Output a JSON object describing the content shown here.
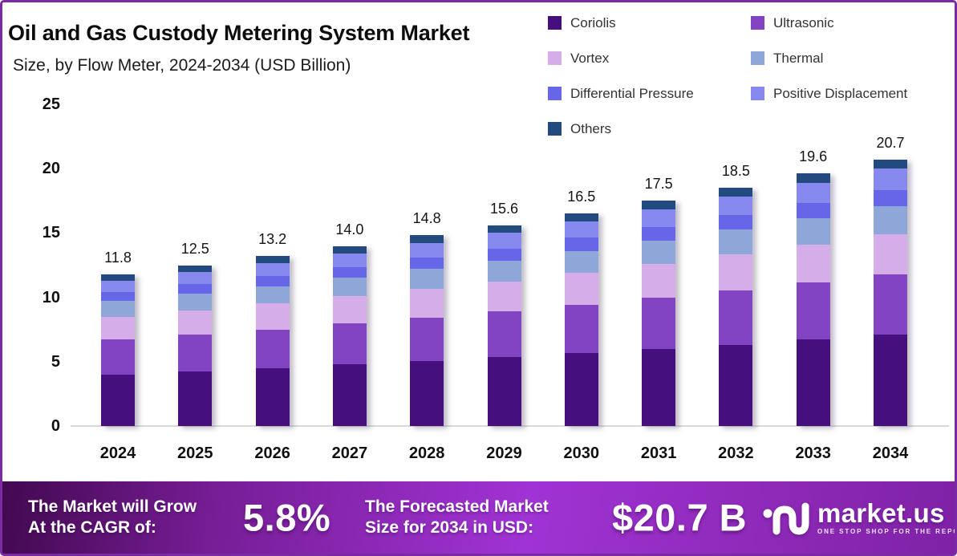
{
  "header": {
    "title": "Oil and Gas Custody Metering System Market",
    "subtitle": "Size, by Flow Meter, 2024-2034 (USD Billion)"
  },
  "colors": {
    "page_border": "#7A2BA4",
    "banner_gradient": [
      "#42094F",
      "#A033D4",
      "#7F22A7"
    ],
    "baseline": "#D9D9D9"
  },
  "legend": [
    {
      "label": "Coriolis",
      "color": "#45107E"
    },
    {
      "label": "Ultrasonic",
      "color": "#8344C4"
    },
    {
      "label": "Vortex",
      "color": "#D5ADE9"
    },
    {
      "label": "Thermal",
      "color": "#8FA7D8"
    },
    {
      "label": "Differential Pressure",
      "color": "#6765E8"
    },
    {
      "label": "Positive Displacement",
      "color": "#8789EE"
    },
    {
      "label": "Others",
      "color": "#234A7E"
    }
  ],
  "chart_data": {
    "type": "bar",
    "stacked": true,
    "title": "Oil and Gas Custody Metering System Market Size, by Flow Meter, 2024-2034 (USD Billion)",
    "categories": [
      "2024",
      "2025",
      "2026",
      "2027",
      "2028",
      "2029",
      "2030",
      "2031",
      "2032",
      "2033",
      "2034"
    ],
    "series": [
      {
        "name": "Coriolis",
        "color": "#45107E",
        "values": [
          4.0,
          4.25,
          4.5,
          4.77,
          5.05,
          5.33,
          5.64,
          5.98,
          6.32,
          6.7,
          7.1
        ]
      },
      {
        "name": "Ultrasonic",
        "color": "#8344C4",
        "values": [
          2.7,
          2.85,
          3.0,
          3.18,
          3.37,
          3.55,
          3.76,
          3.98,
          4.21,
          4.45,
          4.7
        ]
      },
      {
        "name": "Vortex",
        "color": "#D5ADE9",
        "values": [
          1.8,
          1.9,
          2.0,
          2.12,
          2.24,
          2.36,
          2.5,
          2.64,
          2.79,
          2.95,
          3.08
        ]
      },
      {
        "name": "Thermal",
        "color": "#8FA7D8",
        "values": [
          1.2,
          1.27,
          1.35,
          1.43,
          1.52,
          1.61,
          1.71,
          1.81,
          1.92,
          2.05,
          2.17
        ]
      },
      {
        "name": "Differential Pressure",
        "color": "#6765E8",
        "values": [
          0.7,
          0.74,
          0.79,
          0.84,
          0.89,
          0.94,
          1.0,
          1.06,
          1.13,
          1.2,
          1.28
        ]
      },
      {
        "name": "Positive Displacement",
        "color": "#8789EE",
        "values": [
          0.9,
          0.96,
          1.02,
          1.08,
          1.15,
          1.21,
          1.28,
          1.38,
          1.46,
          1.55,
          1.64
        ]
      },
      {
        "name": "Others",
        "color": "#234A7E",
        "values": [
          0.5,
          0.52,
          0.54,
          0.56,
          0.58,
          0.6,
          0.62,
          0.65,
          0.67,
          0.7,
          0.73
        ]
      }
    ],
    "totals": [
      11.8,
      12.5,
      13.2,
      14.0,
      14.8,
      15.6,
      16.5,
      17.5,
      18.5,
      19.6,
      20.7
    ],
    "total_labels": [
      "11.8",
      "12.5",
      "13.2",
      "14.0",
      "14.8",
      "15.6",
      "16.5",
      "17.5",
      "18.5",
      "19.6",
      "20.7"
    ],
    "ylim": [
      0,
      25
    ],
    "yticks": [
      0,
      5,
      10,
      15,
      20,
      25
    ],
    "grid": false,
    "legend_position": "top-right"
  },
  "banner": {
    "cagr_line1": "The Market will Grow",
    "cagr_line2": "At the CAGR of:",
    "cagr_value": "5.8%",
    "forecast_line1": "The Forecasted Market",
    "forecast_line2": "Size for 2034 in USD:",
    "forecast_value": "$20.7 B",
    "logo_text": "market.us",
    "logo_tagline": "ONE STOP SHOP FOR THE REPORTS"
  }
}
